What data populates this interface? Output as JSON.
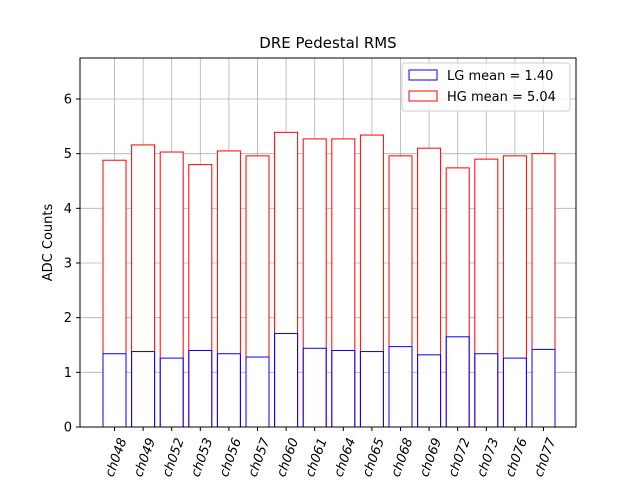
{
  "chart_data": {
    "type": "bar",
    "title": "DRE Pedestal RMS",
    "xlabel": "",
    "ylabel": "ADC Counts",
    "ylim": [
      0,
      6.75
    ],
    "yticks": [
      0,
      1,
      2,
      3,
      4,
      5,
      6
    ],
    "grid": true,
    "legend_position": "top-right",
    "categories": [
      "ch048",
      "ch049",
      "ch052",
      "ch053",
      "ch056",
      "ch057",
      "ch060",
      "ch061",
      "ch064",
      "ch065",
      "ch068",
      "ch069",
      "ch072",
      "ch073",
      "ch076",
      "ch077"
    ],
    "series": [
      {
        "name": "HG mean = 5.04",
        "color": "#ff0000",
        "values": [
          4.88,
          5.16,
          5.03,
          4.8,
          5.05,
          4.96,
          5.39,
          5.27,
          5.27,
          5.34,
          4.96,
          5.1,
          4.74,
          4.9,
          4.96,
          5.0
        ]
      },
      {
        "name": "LG mean = 1.40",
        "color": "#0000ff",
        "values": [
          1.34,
          1.38,
          1.26,
          1.4,
          1.34,
          1.28,
          1.71,
          1.44,
          1.4,
          1.38,
          1.47,
          1.32,
          1.65,
          1.34,
          1.26,
          1.42
        ]
      }
    ],
    "legend_order": [
      "LG mean = 1.40",
      "HG mean = 5.04"
    ]
  }
}
